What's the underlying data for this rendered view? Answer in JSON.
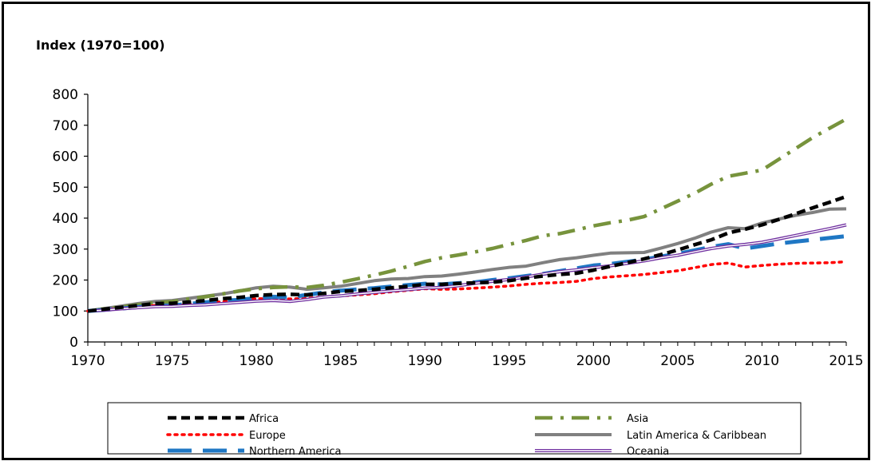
{
  "chart_data": {
    "type": "line",
    "title": "",
    "ylabel": "Index (1970=100)",
    "xlabel": "",
    "xlim": [
      1970,
      2015
    ],
    "ylim": [
      0,
      800
    ],
    "x_ticks": [
      1970,
      1975,
      1980,
      1985,
      1990,
      1995,
      2000,
      2005,
      2010,
      2015
    ],
    "y_ticks": [
      0,
      100,
      200,
      300,
      400,
      500,
      600,
      700,
      800
    ],
    "grid": false,
    "legend_position": "bottom",
    "x": [
      1970,
      1971,
      1972,
      1973,
      1974,
      1975,
      1976,
      1977,
      1978,
      1979,
      1980,
      1981,
      1982,
      1983,
      1984,
      1985,
      1986,
      1987,
      1988,
      1989,
      1990,
      1991,
      1992,
      1993,
      1994,
      1995,
      1996,
      1997,
      1998,
      1999,
      2000,
      2001,
      2002,
      2003,
      2004,
      2005,
      2006,
      2007,
      2008,
      2009,
      2010,
      2011,
      2012,
      2013,
      2014,
      2015
    ],
    "series": [
      {
        "name": "Africa",
        "color": "#000000",
        "style": "dashed",
        "values": [
          100,
          106,
          112,
          118,
          124,
          125,
          129,
          134,
          140,
          144,
          150,
          153,
          154,
          152,
          157,
          163,
          166,
          170,
          175,
          180,
          186,
          186,
          189,
          191,
          193,
          198,
          206,
          213,
          218,
          222,
          232,
          244,
          256,
          268,
          282,
          297,
          314,
          330,
          352,
          364,
          378,
          396,
          414,
          433,
          451,
          470
        ]
      },
      {
        "name": "Asia",
        "color": "#77933c",
        "style": "dashdot",
        "values": [
          100,
          107,
          113,
          120,
          127,
          130,
          139,
          146,
          155,
          165,
          172,
          176,
          178,
          176,
          183,
          193,
          204,
          216,
          229,
          244,
          260,
          272,
          281,
          291,
          302,
          315,
          328,
          343,
          350,
          362,
          375,
          385,
          393,
          405,
          430,
          455,
          480,
          510,
          535,
          545,
          555,
          590,
          625,
          660,
          690,
          720
        ]
      },
      {
        "name": "Europe",
        "color": "#ff0000",
        "style": "dotted",
        "values": [
          100,
          105,
          110,
          114,
          118,
          116,
          121,
          126,
          130,
          135,
          140,
          139,
          139,
          141,
          145,
          149,
          152,
          156,
          162,
          167,
          172,
          170,
          171,
          174,
          177,
          181,
          186,
          190,
          192,
          196,
          205,
          210,
          214,
          218,
          224,
          230,
          240,
          250,
          255,
          242,
          247,
          251,
          254,
          255,
          256,
          259
        ]
      },
      {
        "name": "Latin America & Caribbean",
        "color": "#808080",
        "style": "solid",
        "values": [
          100,
          108,
          116,
          124,
          131,
          134,
          141,
          148,
          155,
          165,
          175,
          180,
          177,
          170,
          175,
          180,
          189,
          198,
          203,
          205,
          211,
          213,
          219,
          226,
          234,
          241,
          245,
          256,
          266,
          272,
          280,
          287,
          288,
          289,
          303,
          318,
          335,
          355,
          369,
          366,
          384,
          397,
          409,
          418,
          429,
          430
        ]
      },
      {
        "name": "Northern America",
        "color": "#1f77c4",
        "style": "longdash",
        "values": [
          100,
          104,
          108,
          113,
          117,
          118,
          123,
          128,
          133,
          136,
          142,
          146,
          144,
          152,
          160,
          166,
          170,
          174,
          179,
          184,
          188,
          186,
          190,
          193,
          200,
          206,
          213,
          220,
          229,
          238,
          247,
          252,
          259,
          266,
          276,
          285,
          296,
          307,
          316,
          302,
          310,
          318,
          324,
          330,
          336,
          342
        ]
      },
      {
        "name": "Oceania",
        "color": "#7030a0",
        "style": "double",
        "values": [
          100,
          103,
          107,
          111,
          114,
          115,
          118,
          120,
          124,
          128,
          132,
          134,
          131,
          137,
          145,
          149,
          155,
          160,
          165,
          169,
          174,
          176,
          182,
          190,
          196,
          202,
          210,
          219,
          227,
          233,
          240,
          246,
          254,
          262,
          272,
          280,
          291,
          302,
          310,
          315,
          322,
          333,
          344,
          355,
          366,
          378
        ]
      }
    ]
  }
}
